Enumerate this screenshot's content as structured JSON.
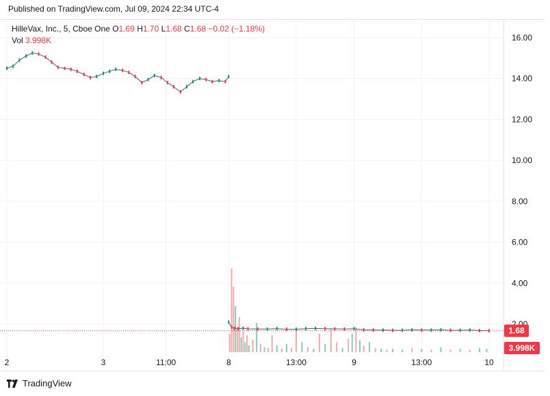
{
  "header": {
    "published": "Published on TradingView.com, Jul 09, 2024 22:34 UTC-4"
  },
  "legend": {
    "symbol": "HilleVax, Inc., 5, Cboe One",
    "open_label": "O",
    "open": "1.69",
    "high_label": "H",
    "high": "1.70",
    "low_label": "L",
    "low": "1.68",
    "close_label": "C",
    "close": "1.68",
    "change": "−0.02 (−1.18%)",
    "vol_label": "Vol",
    "vol_value": "3.998K"
  },
  "price_badge": "1.68",
  "volume_badge": "3.998K",
  "footer": {
    "brand": "TradingView"
  },
  "colors": {
    "up": "#089981",
    "down": "#f23645",
    "grid": "#f0f3fa",
    "text": "#131722"
  },
  "chart_data": {
    "type": "line",
    "ylim": [
      0.6,
      16.9
    ],
    "y_ticks": [
      "16.00",
      "14.00",
      "12.00",
      "10.00",
      "8.00",
      "6.00",
      "4.00",
      "2.00"
    ],
    "y_tick_values": [
      16,
      14,
      12,
      10,
      8,
      6,
      4,
      2
    ],
    "x_ticks": [
      "2",
      "3",
      "11:00",
      "8",
      "13:00",
      "9",
      "13:00",
      "10"
    ],
    "x_tick_positions": [
      0,
      0.2,
      0.33,
      0.46,
      0.6,
      0.72,
      0.86,
      1.0
    ],
    "last_price": 1.68,
    "series": [
      {
        "name": "price",
        "segment": "Jul 2 - Jul 3",
        "x": [
          0.0,
          0.013,
          0.026,
          0.04,
          0.053,
          0.066,
          0.08,
          0.093,
          0.106,
          0.12,
          0.133,
          0.146,
          0.16,
          0.173,
          0.186,
          0.2,
          0.213,
          0.226,
          0.24,
          0.253,
          0.266,
          0.28,
          0.293,
          0.306,
          0.32,
          0.333,
          0.346,
          0.36,
          0.373,
          0.386,
          0.4,
          0.413,
          0.426,
          0.44,
          0.453,
          0.46
        ],
        "values": [
          14.5,
          14.6,
          14.9,
          15.1,
          15.25,
          15.2,
          15.05,
          14.8,
          14.55,
          14.5,
          14.45,
          14.35,
          14.2,
          14.05,
          14.1,
          14.25,
          14.35,
          14.45,
          14.4,
          14.3,
          14.1,
          13.8,
          13.95,
          14.15,
          14.05,
          13.8,
          13.6,
          13.35,
          13.6,
          13.85,
          14.0,
          13.95,
          13.85,
          13.9,
          13.85,
          14.1
        ]
      },
      {
        "name": "price",
        "segment": "Jul 8 - Jul 10",
        "x": [
          0.46,
          0.466,
          0.472,
          0.48,
          0.49,
          0.5,
          0.52,
          0.54,
          0.56,
          0.58,
          0.6,
          0.62,
          0.64,
          0.66,
          0.68,
          0.7,
          0.72,
          0.74,
          0.76,
          0.78,
          0.8,
          0.82,
          0.84,
          0.86,
          0.88,
          0.9,
          0.92,
          0.94,
          0.96,
          0.98,
          1.0
        ],
        "values": [
          2.1,
          1.85,
          1.8,
          1.78,
          1.8,
          1.77,
          1.76,
          1.76,
          1.78,
          1.75,
          1.75,
          1.78,
          1.79,
          1.78,
          1.77,
          1.76,
          1.78,
          1.72,
          1.71,
          1.71,
          1.7,
          1.7,
          1.72,
          1.71,
          1.71,
          1.72,
          1.7,
          1.7,
          1.71,
          1.69,
          1.68
        ]
      }
    ],
    "volume_bars": {
      "x": [
        0.462,
        0.466,
        0.47,
        0.474,
        0.478,
        0.482,
        0.486,
        0.49,
        0.494,
        0.498,
        0.502,
        0.51,
        0.518,
        0.526,
        0.534,
        0.542,
        0.55,
        0.56,
        0.57,
        0.58,
        0.59,
        0.6,
        0.612,
        0.624,
        0.636,
        0.648,
        0.66,
        0.672,
        0.684,
        0.696,
        0.708,
        0.716,
        0.724,
        0.732,
        0.74,
        0.752,
        0.764,
        0.776,
        0.788,
        0.8,
        0.82,
        0.84,
        0.86,
        0.88,
        0.9,
        0.92,
        0.94,
        0.96,
        0.98,
        0.995
      ],
      "values": [
        0.22,
        1.0,
        0.78,
        0.55,
        0.3,
        0.42,
        0.18,
        0.25,
        0.12,
        0.2,
        0.08,
        0.15,
        0.35,
        0.1,
        0.06,
        0.05,
        0.2,
        0.08,
        0.04,
        0.1,
        0.05,
        0.28,
        0.12,
        0.06,
        0.04,
        0.22,
        0.1,
        0.28,
        0.12,
        0.05,
        0.16,
        0.22,
        0.3,
        0.14,
        0.08,
        0.12,
        0.05,
        0.04,
        0.03,
        0.04,
        0.03,
        0.05,
        0.04,
        0.03,
        0.06,
        0.03,
        0.04,
        0.03,
        0.05,
        0.04
      ],
      "up": [
        false,
        false,
        false,
        true,
        false,
        false,
        true,
        false,
        true,
        false,
        true,
        false,
        true,
        false,
        true,
        false,
        false,
        true,
        false,
        true,
        false,
        false,
        true,
        false,
        true,
        false,
        true,
        false,
        false,
        true,
        false,
        true,
        false,
        true,
        false,
        true,
        false,
        true,
        false,
        true,
        true,
        false,
        true,
        false,
        true,
        false,
        true,
        false,
        true,
        true
      ]
    }
  }
}
